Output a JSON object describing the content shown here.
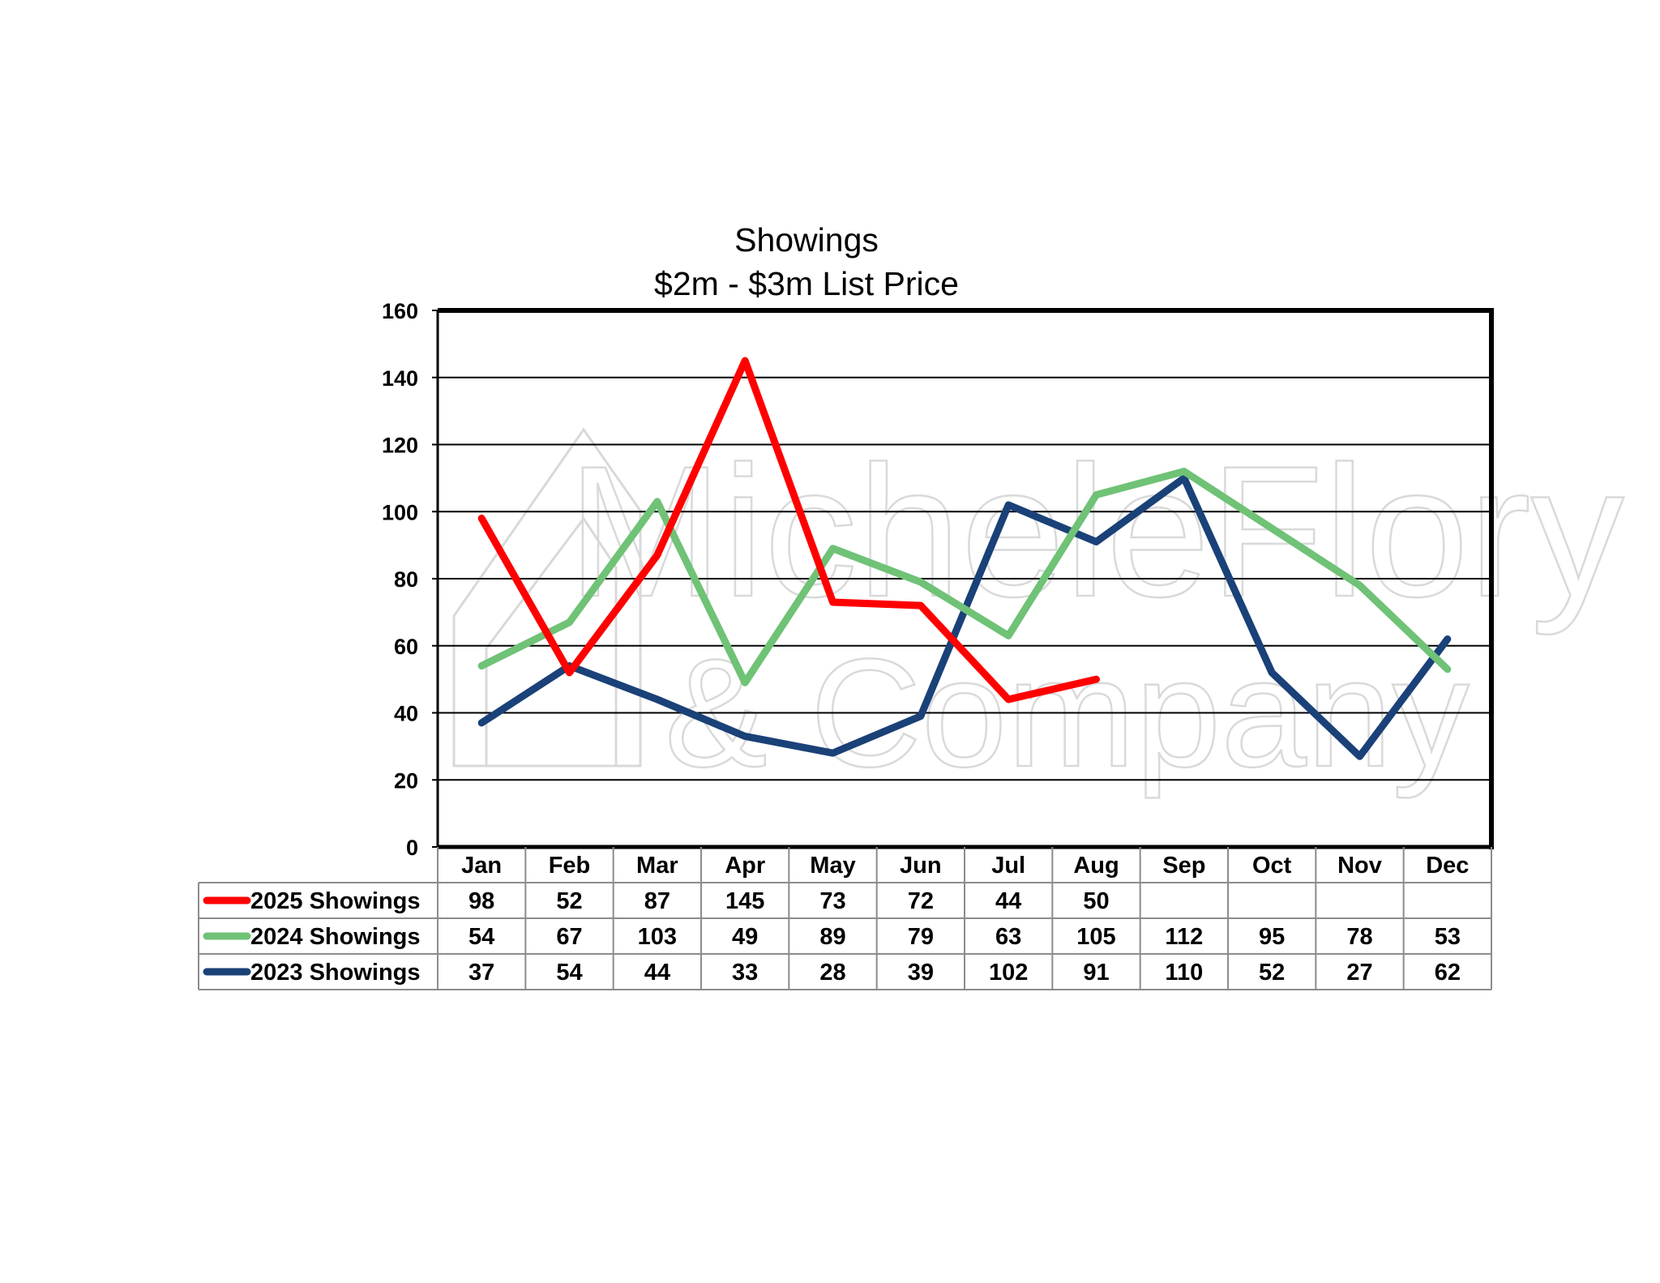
{
  "chart_data": {
    "type": "line",
    "title": [
      "Showings",
      "$2m - $3m List Price"
    ],
    "categories": [
      "Jan",
      "Feb",
      "Mar",
      "Apr",
      "May",
      "Jun",
      "Jul",
      "Aug",
      "Sep",
      "Oct",
      "Nov",
      "Dec"
    ],
    "ylim": [
      0,
      160
    ],
    "yticks": [
      0,
      20,
      40,
      60,
      80,
      100,
      120,
      140,
      160
    ],
    "grid": true,
    "legend": "data-table",
    "watermark": [
      "MicheleFlory",
      "& Company"
    ],
    "series": [
      {
        "name": "2025 Showings",
        "color": "#ff0000",
        "values": [
          98,
          52,
          87,
          145,
          73,
          72,
          44,
          50,
          null,
          null,
          null,
          null
        ]
      },
      {
        "name": "2024 Showings",
        "color": "#6fc276",
        "values": [
          54,
          67,
          103,
          49,
          89,
          79,
          63,
          105,
          112,
          95,
          78,
          53
        ]
      },
      {
        "name": "2023 Showings",
        "color": "#1a4178",
        "values": [
          37,
          54,
          44,
          33,
          28,
          39,
          102,
          91,
          110,
          52,
          27,
          62
        ]
      }
    ]
  }
}
